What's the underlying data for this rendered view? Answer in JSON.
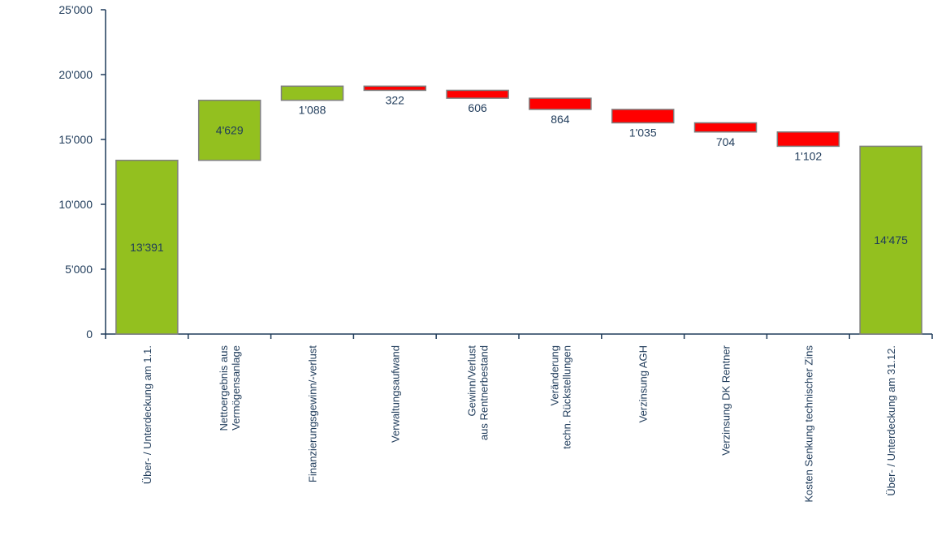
{
  "chart_data": {
    "type": "waterfall",
    "title": "",
    "xlabel": "",
    "ylabel": "",
    "ylim": [
      0,
      25000
    ],
    "yticks": [
      0,
      5000,
      10000,
      15000,
      20000,
      25000
    ],
    "ytick_labels": [
      "0",
      "5'000",
      "10'000",
      "15'000",
      "20'000",
      "25'000"
    ],
    "grid": false,
    "legend": "none",
    "colors": {
      "total": "#93c01f",
      "increase": "#93c01f",
      "decrease": "#ff0000",
      "border": "#7f7f7f",
      "axis": "#1f3b5a"
    },
    "bars": [
      {
        "label": [
          "Über- / Unterdeckung am 1.1."
        ],
        "kind": "total",
        "value": 13391,
        "start": 0,
        "end": 13391,
        "value_label": "13'391"
      },
      {
        "label": [
          "Nettoergebnis aus",
          "Vermögensanlage"
        ],
        "kind": "increase",
        "value": 4629,
        "start": 13391,
        "end": 18020,
        "value_label": "4'629"
      },
      {
        "label": [
          "Finanzierungsgewinn/-verlust"
        ],
        "kind": "increase",
        "value": 1088,
        "start": 18020,
        "end": 19108,
        "value_label": "1'088"
      },
      {
        "label": [
          "Verwaltungsaufwand"
        ],
        "kind": "decrease",
        "value": -322,
        "start": 19108,
        "end": 18786,
        "value_label": "322"
      },
      {
        "label": [
          "Gewinn/Verlust",
          "aus Rentnerbestand"
        ],
        "kind": "decrease",
        "value": -606,
        "start": 18786,
        "end": 18180,
        "value_label": "606"
      },
      {
        "label": [
          "Veränderung",
          "techn. Rückstellungen"
        ],
        "kind": "decrease",
        "value": -864,
        "start": 18180,
        "end": 17316,
        "value_label": "864"
      },
      {
        "label": [
          "Verzinsung AGH"
        ],
        "kind": "decrease",
        "value": -1035,
        "start": 17316,
        "end": 16281,
        "value_label": "1'035"
      },
      {
        "label": [
          "Verzinsung DK Rentner"
        ],
        "kind": "decrease",
        "value": -704,
        "start": 16281,
        "end": 15577,
        "value_label": "704"
      },
      {
        "label": [
          "Kosten Senkung technischer Zins"
        ],
        "kind": "decrease",
        "value": -1102,
        "start": 15577,
        "end": 14475,
        "value_label": "1'102"
      },
      {
        "label": [
          "Über- / Unterdeckung am 31.12."
        ],
        "kind": "total",
        "value": 14475,
        "start": 0,
        "end": 14475,
        "value_label": "14'475"
      }
    ]
  }
}
